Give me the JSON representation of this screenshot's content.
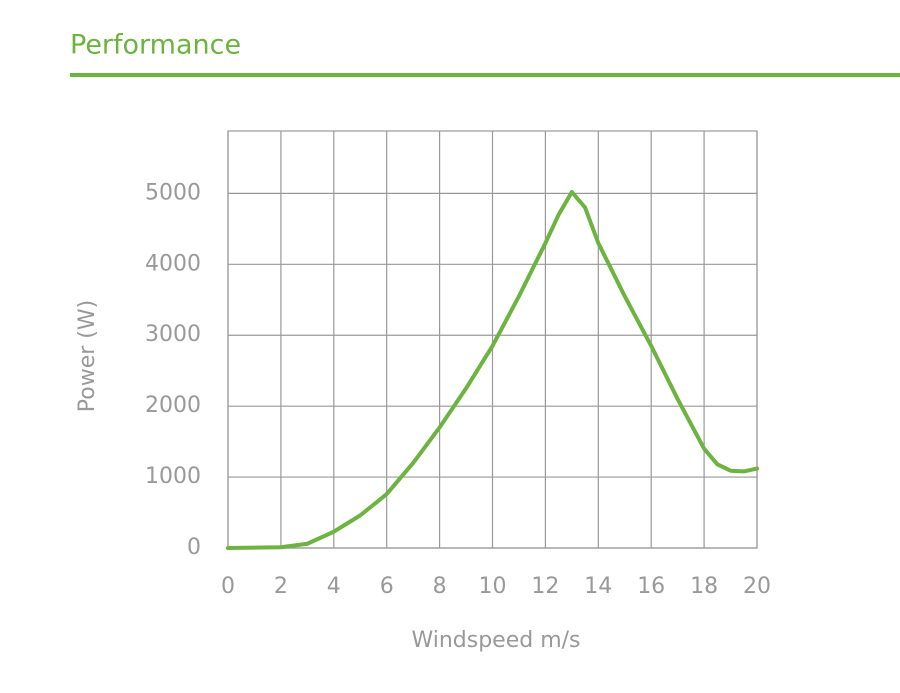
{
  "chart_data": {
    "type": "line",
    "title": "Performance",
    "x_label": "Windspeed m/s",
    "y_label": "Power (W)",
    "series": [
      {
        "name": null,
        "color": "#6cb33f",
        "x": [
          0,
          1,
          2,
          3,
          4,
          5,
          6,
          7,
          8,
          9,
          10,
          11,
          12,
          12.5,
          13,
          13.5,
          14,
          15,
          16,
          17,
          18,
          18.5,
          19,
          19.5,
          20
        ],
        "values": [
          0,
          5,
          10,
          60,
          230,
          460,
          760,
          1200,
          1700,
          2250,
          2850,
          3550,
          4300,
          4700,
          5020,
          4800,
          4300,
          3550,
          2850,
          2100,
          1400,
          1180,
          1090,
          1080,
          1120
        ]
      }
    ],
    "xlim": [
      0,
      20
    ],
    "xticks": [
      0,
      2,
      4,
      6,
      8,
      10,
      12,
      14,
      16,
      18,
      20
    ],
    "ylim": [
      0,
      5880
    ],
    "yticks": [
      0,
      1000,
      2000,
      3000,
      4000,
      5000
    ],
    "grid": true
  }
}
